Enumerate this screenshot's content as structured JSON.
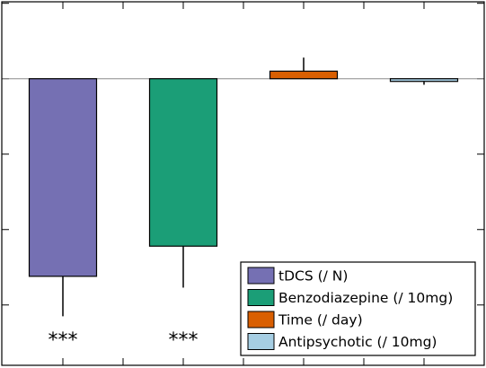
{
  "chart_data": {
    "type": "bar",
    "categories": [
      "tDCS (/ N)",
      "Benzodiazepine (/ 10mg)",
      "Time (/ day)",
      "Antipsychotic (/ 10mg)"
    ],
    "values": [
      -2.62,
      -2.22,
      0.1,
      -0.03
    ],
    "error_bars": [
      -3.15,
      -2.77,
      0.28,
      -0.08
    ],
    "significance": [
      "***",
      "***",
      "",
      ""
    ],
    "colors": [
      "#7570b3",
      "#1b9e77",
      "#d95f02",
      "#a6cee3"
    ],
    "ylim": [
      -3.8,
      1.02
    ],
    "yticks": [
      -3,
      -2,
      -1,
      0,
      1
    ],
    "legend": {
      "position": "bottom-right",
      "entries": [
        "tDCS (/ N)",
        "Benzodiazepine (/ 10mg)",
        "Time (/ day)",
        "Antipsychotic (/ 10mg)"
      ]
    },
    "title": "",
    "xlabel": "",
    "ylabel": "",
    "grid": false
  }
}
